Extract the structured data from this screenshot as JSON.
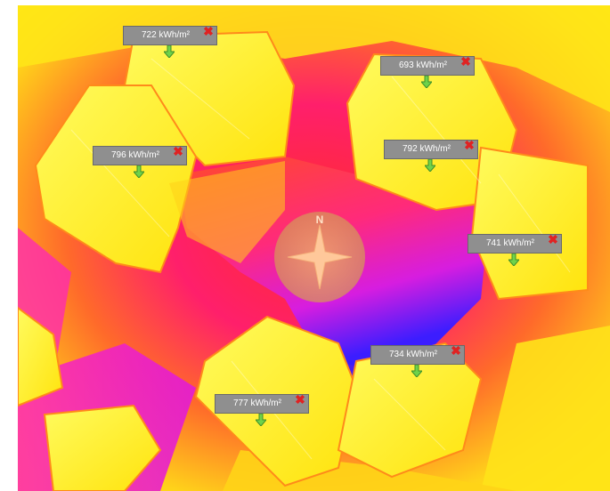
{
  "map": {
    "compass_label": "N",
    "colors": {
      "high": "#fff000",
      "mid": "#ff3d3d",
      "low": "#e21bd6",
      "lowest": "#5a1cff",
      "label_bg": "#8f8f8f",
      "close": "#e02222",
      "pin": "#6fd24a"
    },
    "markers": [
      {
        "value": "722 kWh/m²"
      },
      {
        "value": "693 kWh/m²"
      },
      {
        "value": "796 kWh/m²"
      },
      {
        "value": "792 kWh/m²"
      },
      {
        "value": "741 kWh/m²"
      },
      {
        "value": "734 kWh/m²"
      },
      {
        "value": "777 kWh/m²"
      }
    ]
  }
}
